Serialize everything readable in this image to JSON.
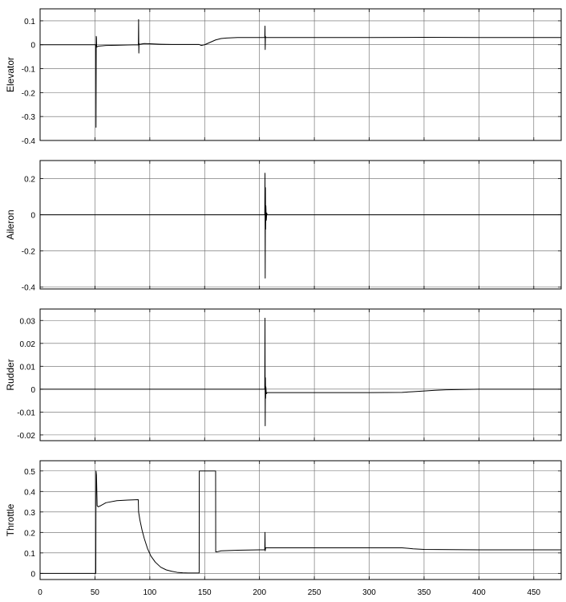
{
  "chart_data": [
    {
      "type": "line",
      "ylabel": "Elevator",
      "xlim": [
        0,
        475
      ],
      "ylim": [
        -0.4,
        0.15
      ],
      "yticks": [
        -0.4,
        -0.3,
        -0.2,
        -0.1,
        0,
        0.1
      ],
      "ytick_labels": [
        "-0.4",
        "-0.3",
        "-0.2",
        "-0.1",
        "0",
        "0.1"
      ],
      "grid": true,
      "series": [
        {
          "name": "Elevator",
          "x": [
            0,
            50.8,
            51.0,
            51.2,
            51.4,
            51.6,
            52.2,
            53,
            60,
            70,
            80,
            89.6,
            89.8,
            90.0,
            90.2,
            90.4,
            91,
            95,
            100,
            110,
            120,
            130,
            140,
            145,
            147,
            150,
            155,
            160,
            165,
            170,
            180,
            200,
            204.8,
            205.0,
            205.2,
            205.4,
            205.6,
            210,
            250,
            300,
            350,
            400,
            475
          ],
          "y": [
            0,
            0,
            -0.345,
            0.035,
            0.03,
            -0.01,
            -0.008,
            -0.006,
            -0.003,
            -0.002,
            -0.001,
            0,
            0.105,
            -0.035,
            0.005,
            0.002,
            0.002,
            0.005,
            0.004,
            0.002,
            0.001,
            0.001,
            0.001,
            0.001,
            -0.003,
            0.0,
            0.01,
            0.02,
            0.026,
            0.028,
            0.03,
            0.03,
            0.03,
            0.078,
            -0.02,
            0.035,
            0.03,
            0.03,
            0.03,
            0.03,
            0.031,
            0.03,
            0.03
          ]
        }
      ]
    },
    {
      "type": "line",
      "ylabel": "Aileron",
      "xlim": [
        0,
        475
      ],
      "ylim": [
        -0.41,
        0.3
      ],
      "yticks": [
        -0.4,
        -0.2,
        0,
        0.2
      ],
      "ytick_labels": [
        "-0.4",
        "-0.2",
        "0",
        "0.2"
      ],
      "grid": true,
      "series": [
        {
          "name": "Aileron",
          "x": [
            0,
            204.8,
            205.0,
            205.2,
            205.4,
            205.6,
            205.8,
            206.2,
            206.6,
            207,
            475
          ],
          "y": [
            0,
            0,
            0.23,
            -0.35,
            0.15,
            -0.08,
            0.05,
            -0.03,
            0.01,
            0,
            0
          ]
        }
      ]
    },
    {
      "type": "line",
      "ylabel": "Rudder",
      "xlim": [
        0,
        475
      ],
      "ylim": [
        -0.0225,
        0.035
      ],
      "yticks": [
        -0.02,
        -0.01,
        0,
        0.01,
        0.02,
        0.03
      ],
      "ytick_labels": [
        "-0.02",
        "-0.01",
        "0",
        "0.01",
        "0.02",
        "0.03"
      ],
      "grid": true,
      "series": [
        {
          "name": "Rudder",
          "x": [
            0,
            204.8,
            205.0,
            205.2,
            205.4,
            205.6,
            205.8,
            206.2,
            207,
            210,
            250,
            300,
            330,
            340,
            350,
            360,
            370,
            380,
            390,
            400,
            475
          ],
          "y": [
            0,
            0,
            0.031,
            -0.016,
            0.005,
            -0.004,
            0.001,
            -0.002,
            -0.0015,
            -0.0015,
            -0.0015,
            -0.0015,
            -0.0014,
            -0.0011,
            -0.0008,
            -0.0005,
            -0.0003,
            -0.0002,
            -0.0001,
            0,
            0
          ]
        }
      ]
    },
    {
      "type": "line",
      "ylabel": "Throttle",
      "xlim": [
        0,
        475
      ],
      "ylim": [
        -0.03,
        0.55
      ],
      "yticks": [
        0,
        0.1,
        0.2,
        0.3,
        0.4,
        0.5
      ],
      "ytick_labels": [
        "0",
        "0.1",
        "0.2",
        "0.3",
        "0.4",
        "0.5"
      ],
      "grid": true,
      "xticks": [
        0,
        50,
        100,
        150,
        200,
        250,
        300,
        350,
        400,
        450
      ],
      "xtick_labels": [
        "0",
        "50",
        "100",
        "150",
        "200",
        "250",
        "300",
        "350",
        "400",
        "450"
      ],
      "series": [
        {
          "name": "Throttle",
          "x": [
            0,
            50.8,
            51.0,
            51.4,
            52,
            53,
            55,
            60,
            70,
            80,
            89.5,
            89.8,
            91,
            93,
            95,
            98,
            101,
            105,
            110,
            115,
            120,
            125,
            130,
            135,
            145,
            145.1,
            160,
            160.1,
            161,
            165,
            180,
            200,
            204.8,
            205.0,
            205.2,
            205.6,
            210,
            250,
            300,
            330,
            340,
            350,
            400,
            475
          ],
          "y": [
            0,
            0,
            0.5,
            0.48,
            0.33,
            0.325,
            0.33,
            0.345,
            0.355,
            0.358,
            0.36,
            0.3,
            0.26,
            0.21,
            0.17,
            0.12,
            0.085,
            0.055,
            0.03,
            0.017,
            0.01,
            0.005,
            0.003,
            0.002,
            0.002,
            0.5,
            0.5,
            0.105,
            0.105,
            0.11,
            0.113,
            0.115,
            0.115,
            0.2,
            0.11,
            0.125,
            0.125,
            0.125,
            0.125,
            0.125,
            0.12,
            0.117,
            0.115,
            0.115
          ]
        }
      ]
    }
  ]
}
